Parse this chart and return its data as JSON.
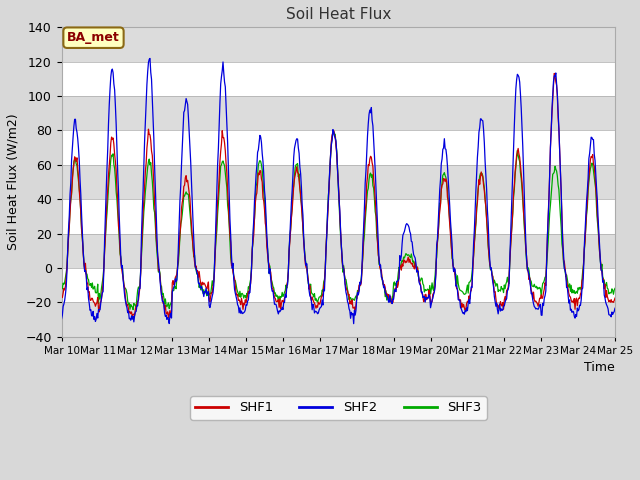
{
  "title": "Soil Heat Flux",
  "ylabel": "Soil Heat Flux (W/m2)",
  "xlabel": "Time",
  "ylim": [
    -40,
    140
  ],
  "xlim": [
    0,
    360
  ],
  "figure_bg": "#d8d8d8",
  "plot_bg_white": "#ffffff",
  "plot_bg_gray": "#dcdcdc",
  "shf1_color": "#cc0000",
  "shf2_color": "#0000dd",
  "shf3_color": "#00aa00",
  "annotation_text": "BA_met",
  "annotation_bg": "#ffffc0",
  "annotation_border": "#8B6914",
  "annotation_text_color": "#8B0000",
  "x_tick_labels": [
    "Mar 10",
    "Mar 11",
    "Mar 12",
    "Mar 13",
    "Mar 14",
    "Mar 15",
    "Mar 16",
    "Mar 17",
    "Mar 18",
    "Mar 19",
    "Mar 20",
    "Mar 21",
    "Mar 22",
    "Mar 23",
    "Mar 24",
    "Mar 25"
  ],
  "x_tick_positions": [
    0,
    24,
    48,
    72,
    96,
    120,
    144,
    168,
    192,
    216,
    240,
    264,
    288,
    312,
    336,
    360
  ],
  "y_ticks": [
    -40,
    -20,
    0,
    20,
    40,
    60,
    80,
    100,
    120,
    140
  ],
  "hours_total": 360,
  "dt": 0.5,
  "shf1_peaks": [
    65,
    75,
    78,
    52,
    75,
    56,
    57,
    80,
    65,
    5,
    53,
    55,
    68,
    112,
    65
  ],
  "shf2_peaks": [
    85,
    115,
    121,
    97,
    117,
    76,
    75,
    80,
    92,
    25,
    72,
    88,
    114,
    113,
    75
  ],
  "shf3_peaks": [
    63,
    65,
    62,
    45,
    62,
    62,
    60,
    80,
    55,
    8,
    55,
    55,
    65,
    60,
    60
  ],
  "shf1_night": [
    -20,
    -27,
    -27,
    -10,
    -21,
    -21,
    -22,
    -22,
    -18,
    -18,
    -22,
    -22,
    -21,
    -20,
    -20
  ],
  "shf2_night": [
    -30,
    -30,
    -30,
    -15,
    -27,
    -26,
    -26,
    -28,
    -18,
    -18,
    -25,
    -25,
    -24,
    -28,
    -28
  ],
  "shf3_night": [
    -12,
    -22,
    -22,
    -15,
    -17,
    -18,
    -18,
    -18,
    -18,
    -12,
    -15,
    -12,
    -12,
    -14,
    -14
  ]
}
